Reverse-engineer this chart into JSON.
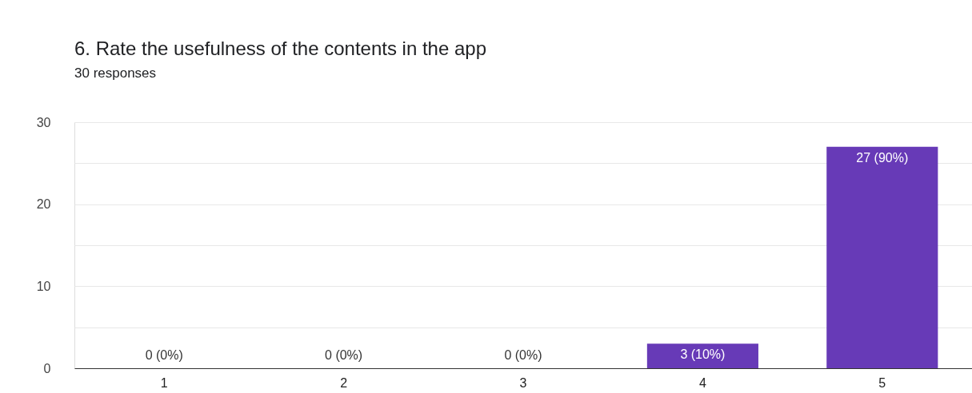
{
  "chart_data": {
    "type": "bar",
    "title": "6. Rate the usefulness of the contents in the app",
    "subtitle": "30 responses",
    "categories": [
      "1",
      "2",
      "3",
      "4",
      "5"
    ],
    "series": [
      {
        "color": "#673ab7",
        "values": [
          0,
          0,
          0,
          3,
          27
        ],
        "value_labels": [
          "0 (0%)",
          "0 (0%)",
          "0 (0%)",
          "3 (10%)",
          "27 (90%)"
        ]
      }
    ],
    "ylim": [
      0,
      30
    ],
    "yticks": [
      0,
      {
        "value": 5,
        "label": null
      },
      10,
      {
        "value": 15,
        "label": null
      },
      20,
      {
        "value": 25,
        "label": null
      },
      30
    ],
    "grid": "y"
  }
}
